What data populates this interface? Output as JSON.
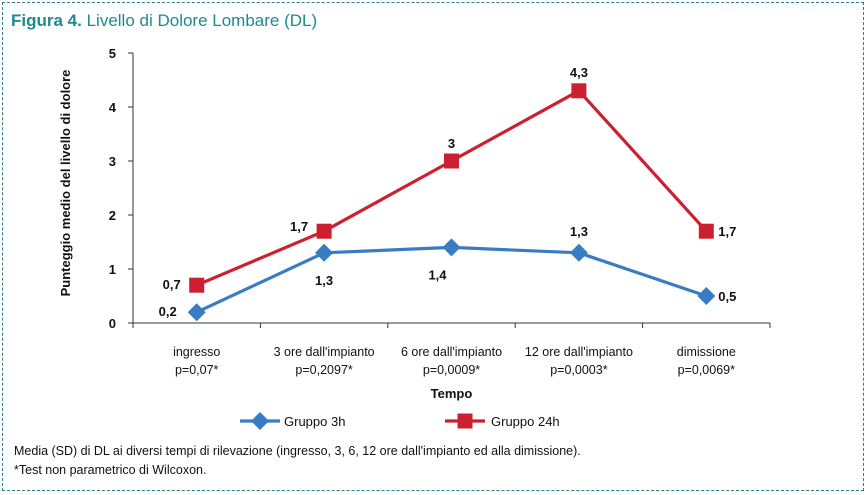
{
  "title": {
    "prefix": "Figura 4.",
    "text": "Livello di Dolore Lombare (DL)"
  },
  "notes": [
    "Media (SD) di DL ai diversi tempi di rilevazione (ingresso, 3, 6, 12 ore dall'impianto ed alla dimissione).",
    "*Test non parametrico di Wilcoxon."
  ],
  "colors": {
    "frame": "#2f7f86",
    "title": "#1e8a8f",
    "gruppo_3h": "#3a7cc4",
    "gruppo_24h": "#cc1f2f"
  },
  "chart_data": {
    "type": "line",
    "title": "Livello di Dolore Lombare (DL)",
    "xlabel": "Tempo",
    "ylabel": "Punteggio medio del livello di dolore",
    "ylim": [
      0,
      5
    ],
    "yticks": [
      0,
      1,
      2,
      3,
      4,
      5
    ],
    "grid": false,
    "legend": "bottom-center",
    "categories": [
      "ingresso",
      "3 ore dall'impianto",
      "6 ore dall'impianto",
      "12 ore dall'impianto",
      "dimissione"
    ],
    "p_values": [
      "p=0,07*",
      "p=0,2097*",
      "p=0,0009*",
      "p=0,0003*",
      "p=0,0069*"
    ],
    "series": [
      {
        "name": "Gruppo 3h",
        "values": [
          0.2,
          1.3,
          1.4,
          1.3,
          0.5
        ],
        "labels": [
          "0,2",
          "1,3",
          "1,4",
          "1,3",
          "0,5"
        ],
        "color": "#3a7cc4",
        "marker": "diamond"
      },
      {
        "name": "Gruppo 24h",
        "values": [
          0.7,
          1.7,
          3,
          4.3,
          1.7
        ],
        "labels": [
          "0,7",
          "1,7",
          "3",
          "4,3",
          "1,7"
        ],
        "color": "#cc1f2f",
        "marker": "square"
      }
    ]
  }
}
